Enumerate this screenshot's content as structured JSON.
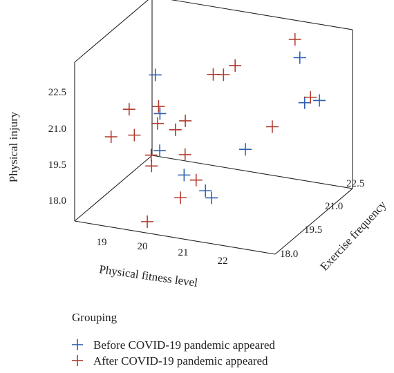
{
  "chart_data": {
    "type": "scatter",
    "subtype": "3d-scatter",
    "xlabel": "Physical fitness level",
    "ylabel": "Exercise frequency",
    "zlabel": "Physical injury",
    "x_ticks": [
      "19",
      "20",
      "21",
      "22"
    ],
    "y_ticks": [
      "18.0",
      "19.5",
      "21.0",
      "22.5"
    ],
    "z_ticks": [
      "18.0",
      "19.5",
      "21.0",
      "22.5"
    ],
    "x_range": [
      18.3,
      22.8
    ],
    "y_range": [
      17.5,
      23.2
    ],
    "z_range": [
      17.0,
      26.5
    ],
    "marker": "+",
    "legend_title": "Grouping",
    "legend_position": "bottom-left",
    "series": [
      {
        "name": "Before COVID-19 pandemic appeared",
        "color": "#2f5fb3",
        "points": [
          [
            18.8,
            21.8,
            23.0
          ],
          [
            19.3,
            20.5,
            21.8
          ],
          [
            19.6,
            19.5,
            20.4
          ],
          [
            20.3,
            19.0,
            19.6
          ],
          [
            20.9,
            18.6,
            19.2
          ],
          [
            21.1,
            18.4,
            19.0
          ],
          [
            21.4,
            19.9,
            21.0
          ],
          [
            21.8,
            22.6,
            24.8
          ],
          [
            22.0,
            22.3,
            22.4
          ],
          [
            22.3,
            22.4,
            22.6
          ]
        ]
      },
      {
        "name": "After COVID-19 pandemic appeared",
        "color": "#b03a2e",
        "points": [
          [
            18.6,
            19.2,
            21.0
          ],
          [
            18.7,
            20.2,
            22.0
          ],
          [
            19.0,
            19.6,
            21.0
          ],
          [
            19.3,
            20.4,
            22.3
          ],
          [
            19.4,
            20.0,
            21.6
          ],
          [
            19.5,
            19.2,
            20.3
          ],
          [
            19.6,
            18.9,
            19.9
          ],
          [
            19.8,
            20.0,
            21.4
          ],
          [
            19.9,
            20.4,
            21.7
          ],
          [
            20.1,
            21.8,
            23.6
          ],
          [
            20.2,
            19.4,
            20.5
          ],
          [
            20.3,
            21.9,
            23.6
          ],
          [
            20.4,
            18.4,
            18.7
          ],
          [
            20.6,
            18.9,
            19.5
          ],
          [
            20.5,
            22.1,
            24.1
          ],
          [
            21.7,
            20.9,
            21.8
          ],
          [
            21.6,
            22.9,
            25.6
          ],
          [
            22.1,
            22.4,
            22.7
          ],
          [
            19.9,
            17.6,
            17.6
          ]
        ]
      }
    ]
  }
}
